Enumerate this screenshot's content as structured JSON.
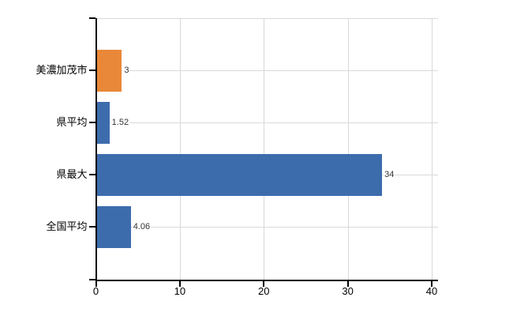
{
  "chart_data": {
    "type": "bar",
    "orientation": "horizontal",
    "title": "",
    "categories": [
      "美濃加茂市",
      "県平均",
      "県最大",
      "全国平均"
    ],
    "values": [
      3,
      1.52,
      34,
      4.06
    ],
    "value_labels": [
      "3",
      "1.52",
      "34",
      "4.06"
    ],
    "x_ticks": [
      "0",
      "10",
      "20",
      "30",
      "40"
    ],
    "x_tick_values": [
      0,
      10,
      20,
      30,
      40
    ],
    "xlim": [
      0,
      40.8
    ],
    "xlabel": "",
    "ylabel": "",
    "grid": true,
    "legend": false,
    "bar_colors": [
      "#E98838",
      "#3D6CAD",
      "#3D6CAD",
      "#3D6CAD"
    ]
  },
  "colors": {
    "highlight_bar": "#E98838",
    "default_bar": "#3D6CAD",
    "gridline": "#D9D9D9",
    "axis": "#000000",
    "category_text": "#000000",
    "value_text": "#333333",
    "background": "#FFFFFF"
  }
}
